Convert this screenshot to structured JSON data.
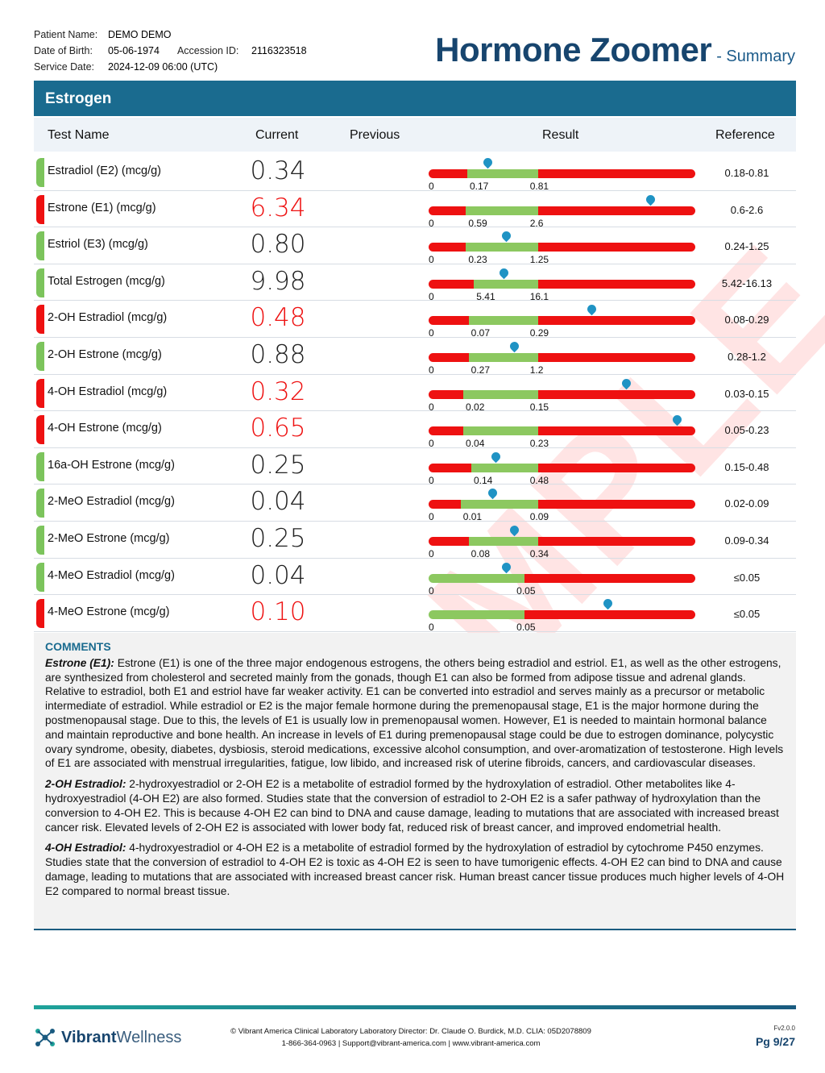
{
  "patient": {
    "name_label": "Patient Name:",
    "name": "DEMO DEMO",
    "dob_label": "Date of Birth:",
    "dob": "05-06-1974",
    "accession_label": "Accession ID:",
    "accession": "2116323518",
    "service_label": "Service Date:",
    "service": "2024-12-09 06:00 (UTC)"
  },
  "title": {
    "main": "Hormone Zoomer",
    "sub": "- Summary"
  },
  "section": "Estrogen",
  "headers": {
    "test": "Test Name",
    "current": "Current",
    "previous": "Previous",
    "result": "Result",
    "reference": "Reference"
  },
  "colors": {
    "high": "#ee1111",
    "normal_flag": "#7cc45c",
    "bar_green": "#8cc860",
    "header": "#1a6b8f",
    "marker": "#1f93c4"
  },
  "tests": [
    {
      "name": "Estradiol (E2) (mcg/g)",
      "current": "0.34",
      "flag": "normal",
      "low": "0",
      "ref_low": "0.17",
      "ref_high": "0.81",
      "reference": "0.18-0.81",
      "marker_fraction": 0.22
    },
    {
      "name": "Estrone (E1) (mcg/g)",
      "current": "6.34",
      "flag": "high",
      "low": "0",
      "ref_low": "0.59",
      "ref_high": "2.6",
      "reference": "0.6-2.6",
      "marker_fraction": 0.83
    },
    {
      "name": "Estriol (E3) (mcg/g)",
      "current": "0.80",
      "flag": "normal",
      "low": "0",
      "ref_low": "0.23",
      "ref_high": "1.25",
      "reference": "0.24-1.25",
      "marker_fraction": 0.29
    },
    {
      "name": "Total Estrogen (mcg/g)",
      "current": "9.98",
      "flag": "normal",
      "low": "0",
      "ref_low": "5.41",
      "ref_high": "16.1",
      "reference": "5.42-16.13",
      "marker_fraction": 0.28
    },
    {
      "name": "2-OH Estradiol (mcg/g)",
      "current": "0.48",
      "flag": "high",
      "low": "0",
      "ref_low": "0.07",
      "ref_high": "0.29",
      "reference": "0.08-0.29",
      "marker_fraction": 0.61
    },
    {
      "name": "2-OH Estrone (mcg/g)",
      "current": "0.88",
      "flag": "normal",
      "low": "0",
      "ref_low": "0.27",
      "ref_high": "1.2",
      "reference": "0.28-1.2",
      "marker_fraction": 0.32
    },
    {
      "name": "4-OH Estradiol (mcg/g)",
      "current": "0.32",
      "flag": "high",
      "low": "0",
      "ref_low": "0.02",
      "ref_high": "0.15",
      "reference": "0.03-0.15",
      "marker_fraction": 0.74
    },
    {
      "name": "4-OH Estrone (mcg/g)",
      "current": "0.65",
      "flag": "high",
      "low": "0",
      "ref_low": "0.04",
      "ref_high": "0.23",
      "reference": "0.05-0.23",
      "marker_fraction": 0.93
    },
    {
      "name": "16a-OH Estrone (mcg/g)",
      "current": "0.25",
      "flag": "normal",
      "low": "0",
      "ref_low": "0.14",
      "ref_high": "0.48",
      "reference": "0.15-0.48",
      "marker_fraction": 0.25
    },
    {
      "name": "2-MeO Estradiol (mcg/g)",
      "current": "0.04",
      "flag": "normal",
      "low": "0",
      "ref_low": "0.01",
      "ref_high": "0.09",
      "reference": "0.02-0.09",
      "marker_fraction": 0.24
    },
    {
      "name": "2-MeO Estrone (mcg/g)",
      "current": "0.25",
      "flag": "normal",
      "low": "0",
      "ref_low": "0.08",
      "ref_high": "0.34",
      "reference": "0.09-0.34",
      "marker_fraction": 0.32
    },
    {
      "name": "4-MeO Estradiol (mcg/g)",
      "current": "0.04",
      "flag": "normal",
      "low": "0",
      "ref_low": "",
      "ref_high": "0.05",
      "reference": "≤0.05",
      "marker_fraction": 0.29
    },
    {
      "name": "4-MeO Estrone (mcg/g)",
      "current": "0.10",
      "flag": "high",
      "low": "0",
      "ref_low": "",
      "ref_high": "0.05",
      "reference": "≤0.05",
      "marker_fraction": 0.67
    }
  ],
  "comments": {
    "heading": "COMMENTS",
    "items": [
      {
        "term": "Estrone (E1):",
        "text": " Estrone (E1) is one of the three major endogenous estrogens, the others being estradiol and estriol. E1, as well as the other estrogens, are synthesized from cholesterol and secreted mainly from the gonads, though E1 can also be formed from adipose tissue and adrenal glands. Relative to estradiol, both E1 and estriol have far weaker activity. E1 can be converted into estradiol and serves mainly as a precursor or metabolic intermediate of estradiol. While estradiol or E2 is the major female hormone during the premenopausal stage, E1 is the major hormone during the postmenopausal stage. Due to this, the levels of E1 is usually low in premenopausal women. However, E1 is needed to maintain hormonal balance and maintain reproductive and bone health. An increase in levels of E1 during premenopausal stage could be due to estrogen dominance, polycystic ovary syndrome, obesity, diabetes, dysbiosis, steroid medications, excessive alcohol consumption, and over-aromatization of testosterone. High levels of E1 are associated with menstrual irregularities, fatigue, low libido, and increased risk of uterine fibroids, cancers, and cardiovascular diseases."
      },
      {
        "term": "2-OH Estradiol:",
        "text": " 2-hydroxyestradiol or 2-OH E2 is a metabolite of estradiol formed by the hydroxylation of estradiol. Other metabolites like 4-hydroxyestradiol (4-OH E2) are also formed. Studies state that the conversion of estradiol to 2-OH E2 is a safer pathway of hydroxylation than the conversion to 4-OH E2. This is because 4-OH E2 can bind to DNA and cause damage, leading to mutations that are associated with increased breast cancer risk. Elevated levels of 2-OH E2 is associated with lower body fat, reduced risk of breast cancer, and improved endometrial health."
      },
      {
        "term": "4-OH Estradiol:",
        "text": " 4-hydroxyestradiol or 4-OH E2 is a metabolite of estradiol formed by the hydroxylation of estradiol by cytochrome P450 enzymes. Studies state that the conversion of estradiol to 4-OH E2 is toxic as 4-OH E2 is seen to have tumorigenic effects. 4-OH E2 can bind to DNA and cause damage, leading to mutations that are associated with increased breast cancer risk. Human breast cancer tissue produces much higher levels of 4-OH E2 compared to normal breast tissue."
      }
    ]
  },
  "watermark": "SAMPLE",
  "footer": {
    "brand_bold": "Vibrant",
    "brand_light": "Wellness",
    "line1": "Vibrant America Clinical Laboratory Laboratory Director: Dr. Claude O. Burdick, M.D. CLIA: 05D2078809",
    "line2": "1-866-364-0963 | Support@vibrant-america.com | www.vibrant-america.com",
    "version": "Fv2.0.0",
    "page": "Pg 9/27"
  }
}
